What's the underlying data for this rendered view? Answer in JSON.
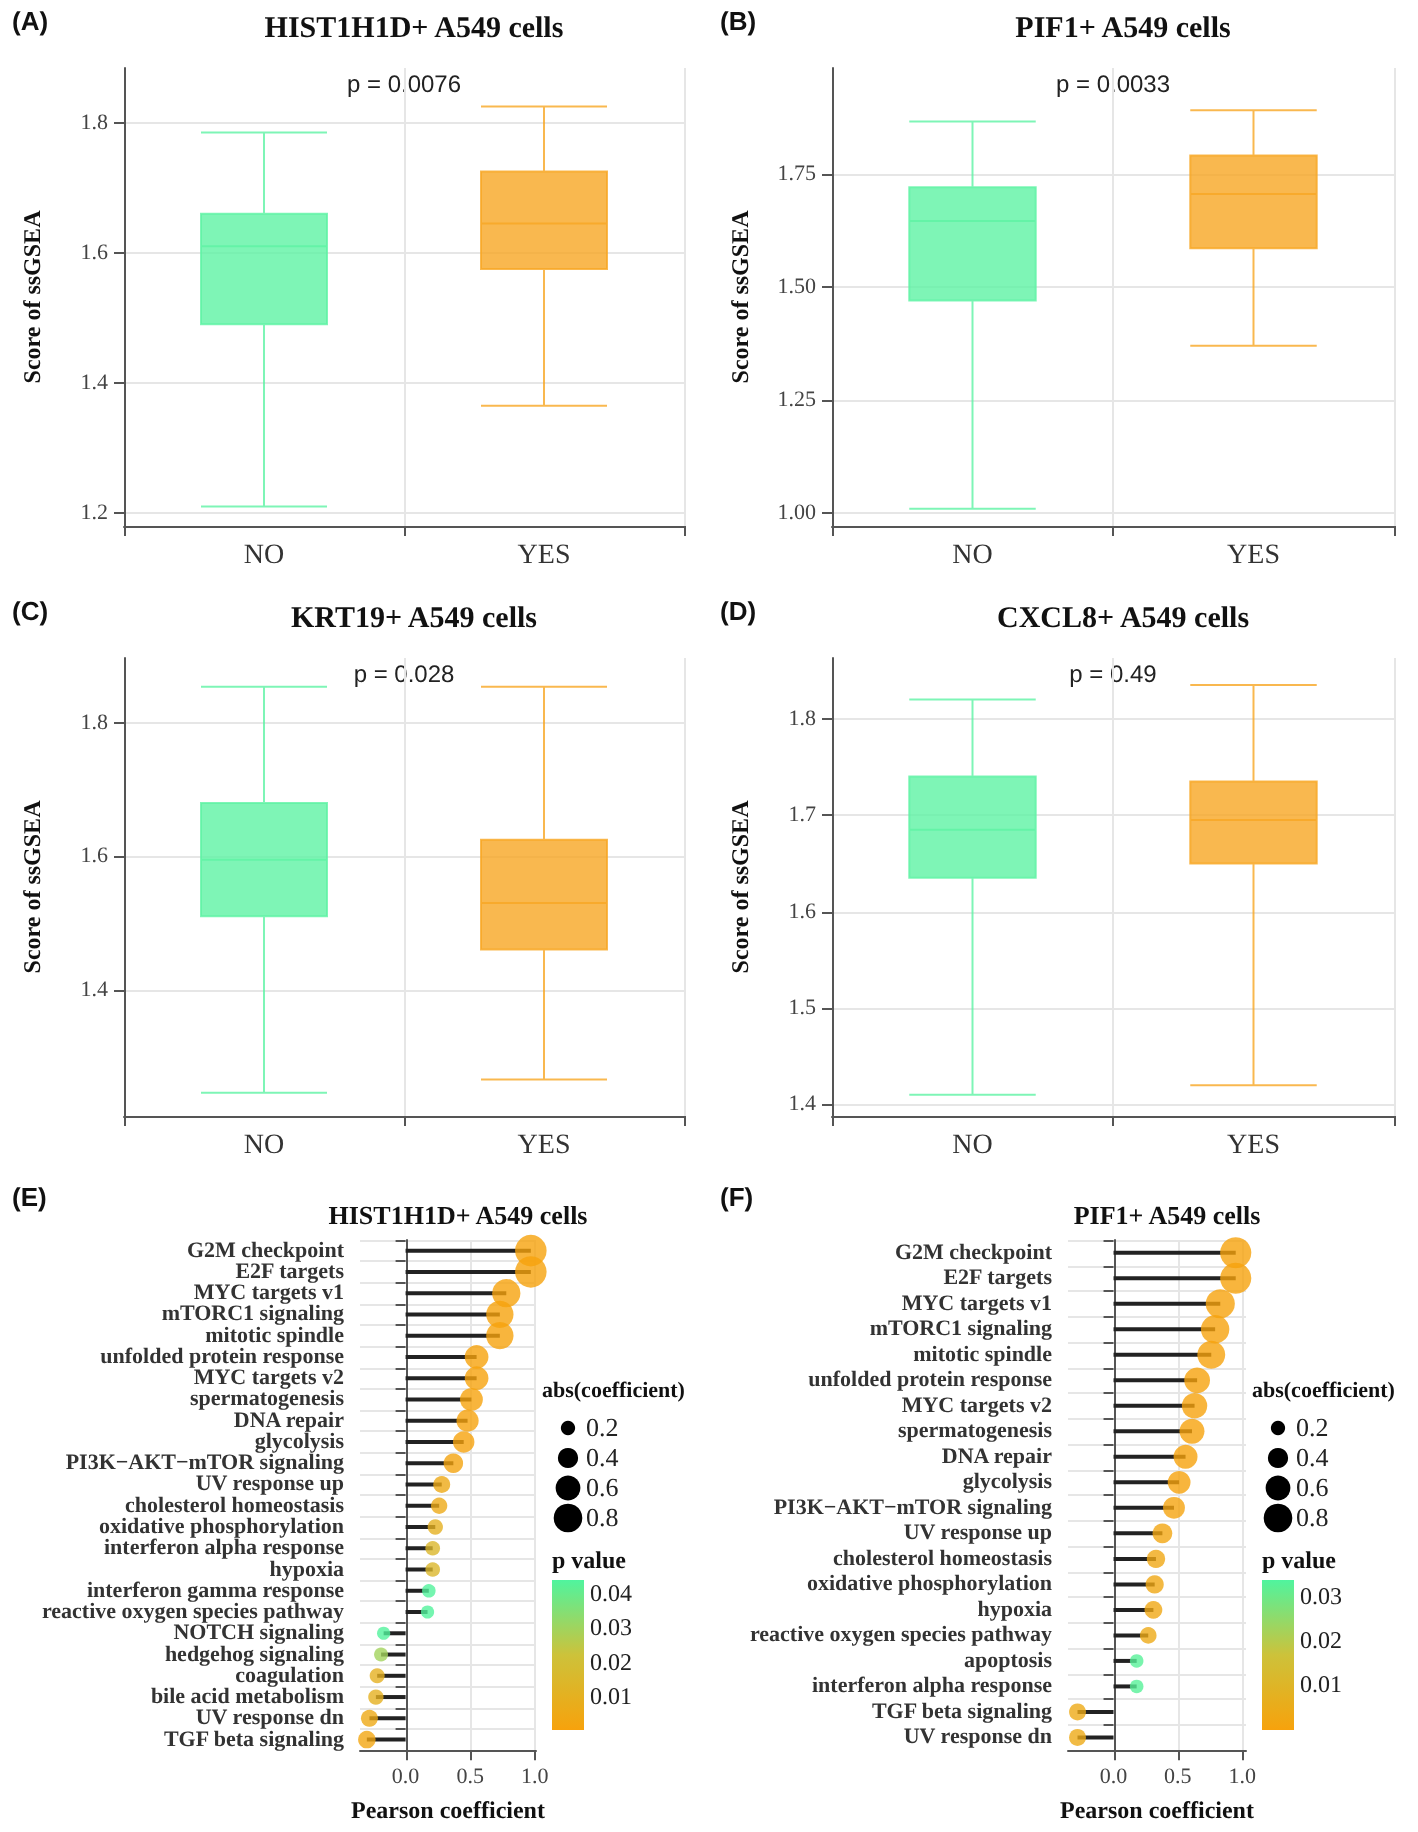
{
  "chart_data": [
    {
      "type": "box",
      "title": "HIST1H1D+ A549 cells",
      "ylabel": "Score of ssGSEA",
      "categories": [
        "NO",
        "YES"
      ],
      "colors": [
        "#5ef2a4",
        "#f8a623"
      ],
      "boxes": [
        {
          "low": 1.21,
          "q1": 1.49,
          "median": 1.61,
          "q3": 1.66,
          "high": 1.785
        },
        {
          "low": 1.365,
          "q1": 1.575,
          "median": 1.645,
          "q3": 1.725,
          "high": 1.825
        }
      ],
      "ylim": [
        1.18,
        1.884
      ],
      "yticks": [
        1.2,
        1.4,
        1.6,
        1.8
      ],
      "grid": true,
      "annotations": [
        "(A)",
        "p = 0.0076"
      ]
    },
    {
      "type": "box",
      "title": "PIF1+ A549 cells",
      "ylabel": "Score of ssGSEA",
      "categories": [
        "NO",
        "YES"
      ],
      "colors": [
        "#5ef2a4",
        "#f8a623"
      ],
      "boxes": [
        {
          "low": 1.01,
          "q1": 1.47,
          "median": 1.645,
          "q3": 1.72,
          "high": 1.865
        },
        {
          "low": 1.37,
          "q1": 1.585,
          "median": 1.705,
          "q3": 1.79,
          "high": 1.89
        }
      ],
      "ylim": [
        0.972,
        1.983
      ],
      "yticks": [
        {
          "value": 1,
          "label": "1.00"
        },
        {
          "value": 1.25,
          "label": "1.25"
        },
        {
          "value": 1.5,
          "label": "1.50"
        },
        {
          "value": 1.75,
          "label": "1.75"
        }
      ],
      "grid": true,
      "annotations": [
        "(B)",
        "p = 0.0033"
      ]
    },
    {
      "type": "box",
      "title": "KRT19+ A549 cells",
      "ylabel": "Score of ssGSEA",
      "categories": [
        "NO",
        "YES"
      ],
      "colors": [
        "#5ef2a4",
        "#f8a623"
      ],
      "boxes": [
        {
          "low": 1.245,
          "q1": 1.51,
          "median": 1.595,
          "q3": 1.68,
          "high": 1.855
        },
        {
          "low": 1.265,
          "q1": 1.46,
          "median": 1.53,
          "q3": 1.625,
          "high": 1.855
        }
      ],
      "ylim": [
        1.21,
        1.898
      ],
      "yticks": [
        1.4,
        1.6,
        1.8
      ],
      "grid": true,
      "annotations": [
        "(C)",
        "p = 0.028"
      ]
    },
    {
      "type": "box",
      "title": "CXCL8+ A549 cells",
      "ylabel": "Score of ssGSEA",
      "categories": [
        "NO",
        "YES"
      ],
      "colors": [
        "#5ef2a4",
        "#f8a623"
      ],
      "boxes": [
        {
          "low": 1.41,
          "q1": 1.635,
          "median": 1.685,
          "q3": 1.74,
          "high": 1.82
        },
        {
          "low": 1.42,
          "q1": 1.65,
          "median": 1.695,
          "q3": 1.735,
          "high": 1.835
        }
      ],
      "ylim": [
        1.388,
        1.863
      ],
      "yticks": [
        1.4,
        1.5,
        1.6,
        1.7,
        1.8
      ],
      "grid": true,
      "annotations": [
        "(D)",
        "p = 0.49"
      ]
    },
    {
      "type": "lollipop",
      "orientation": "horizontal",
      "title": "HIST1H1D+ A549 cells",
      "xlabel": "Pearson coefficient",
      "categories": [
        "G2M checkpoint",
        "E2F targets",
        "MYC targets v1",
        "mTORC1 signaling",
        "mitotic spindle",
        "unfolded protein response",
        "MYC targets v2",
        "spermatogenesis",
        "DNA repair",
        "glycolysis",
        "PI3K−AKT−mTOR signaling",
        "UV response up",
        "cholesterol homeostasis",
        "oxidative phosphorylation",
        "interferon alpha response",
        "hypoxia",
        "interferon gamma response",
        "reactive oxygen species pathway",
        "NOTCH signaling",
        "hedgehog signaling",
        "coagulation",
        "bile acid metabolism",
        "UV response dn",
        "TGF beta signaling"
      ],
      "values": [
        0.97,
        0.97,
        0.78,
        0.73,
        0.73,
        0.55,
        0.55,
        0.51,
        0.48,
        0.45,
        0.37,
        0.28,
        0.26,
        0.23,
        0.21,
        0.21,
        0.18,
        0.17,
        -0.17,
        -0.19,
        -0.22,
        -0.23,
        -0.28,
        -0.3
      ],
      "sizes": [
        0.97,
        0.97,
        0.78,
        0.73,
        0.73,
        0.55,
        0.55,
        0.51,
        0.48,
        0.45,
        0.37,
        0.28,
        0.26,
        0.23,
        0.21,
        0.21,
        0.18,
        0.17,
        0.17,
        0.19,
        0.22,
        0.23,
        0.28,
        0.3
      ],
      "cvalues": [
        0.001,
        0.001,
        0.001,
        0.001,
        0.001,
        0.001,
        0.001,
        0.001,
        0.001,
        0.001,
        0.002,
        0.005,
        0.006,
        0.01,
        0.015,
        0.015,
        0.044,
        0.044,
        0.044,
        0.03,
        0.01,
        0.01,
        0.005,
        0.003
      ],
      "size_legend": [
        0.2,
        0.4,
        0.6,
        0.8
      ],
      "legend_title": "abs(coefficient)",
      "clabel": "p value",
      "clim": [
        0.0005,
        0.0445
      ],
      "cticks": [
        {
          "value": 0.01,
          "label": "0.01"
        },
        {
          "value": 0.02,
          "label": "0.02"
        },
        {
          "value": 0.03,
          "label": "0.03"
        },
        {
          "value": 0.04,
          "label": "0.04"
        }
      ],
      "xlim": [
        -0.353,
        1.01
      ],
      "xticks": [
        {
          "value": 0,
          "label": "0.0"
        },
        {
          "value": 0.5,
          "label": "0.5"
        },
        {
          "value": 1,
          "label": "1.0"
        }
      ],
      "grid": true,
      "annotations": [
        "(E)"
      ]
    },
    {
      "type": "lollipop",
      "orientation": "horizontal",
      "title": "PIF1+ A549 cells",
      "xlabel": "Pearson coefficient",
      "categories": [
        "G2M checkpoint",
        "E2F targets",
        "MYC targets v1",
        "mTORC1 signaling",
        "mitotic spindle",
        "unfolded protein response",
        "MYC targets v2",
        "spermatogenesis",
        "DNA repair",
        "glycolysis",
        "PI3K−AKT−mTOR signaling",
        "UV response up",
        "cholesterol homeostasis",
        "oxidative phosphorylation",
        "hypoxia",
        "reactive oxygen species pathway",
        "apoptosis",
        "interferon alpha response",
        "TGF beta signaling",
        "UV response dn"
      ],
      "values": [
        0.95,
        0.95,
        0.83,
        0.79,
        0.76,
        0.65,
        0.63,
        0.61,
        0.56,
        0.51,
        0.47,
        0.38,
        0.33,
        0.32,
        0.31,
        0.27,
        0.18,
        0.18,
        -0.28,
        -0.28
      ],
      "sizes": [
        0.95,
        0.95,
        0.83,
        0.79,
        0.76,
        0.65,
        0.63,
        0.61,
        0.56,
        0.51,
        0.47,
        0.38,
        0.33,
        0.32,
        0.31,
        0.27,
        0.18,
        0.18,
        0.28,
        0.28
      ],
      "cvalues": [
        0.0005,
        0.0005,
        0.0005,
        0.0005,
        0.0005,
        0.0005,
        0.0005,
        0.0005,
        0.0005,
        0.0005,
        0.001,
        0.002,
        0.003,
        0.003,
        0.003,
        0.004,
        0.033,
        0.033,
        0.004,
        0.004
      ],
      "size_legend": [
        0.2,
        0.4,
        0.6,
        0.8
      ],
      "legend_title": "abs(coefficient)",
      "clabel": "p value",
      "clim": [
        0,
        0.034
      ],
      "cticks": [
        {
          "value": 0.01,
          "label": "0.01"
        },
        {
          "value": 0.02,
          "label": "0.02"
        },
        {
          "value": 0.03,
          "label": "0.03"
        }
      ],
      "xlim": [
        -0.354,
        1.03
      ],
      "xticks": [
        {
          "value": 0,
          "label": "0.0"
        },
        {
          "value": 0.5,
          "label": "0.5"
        },
        {
          "value": 1,
          "label": "1.0"
        }
      ],
      "grid": true,
      "annotations": [
        "(F)"
      ]
    }
  ]
}
